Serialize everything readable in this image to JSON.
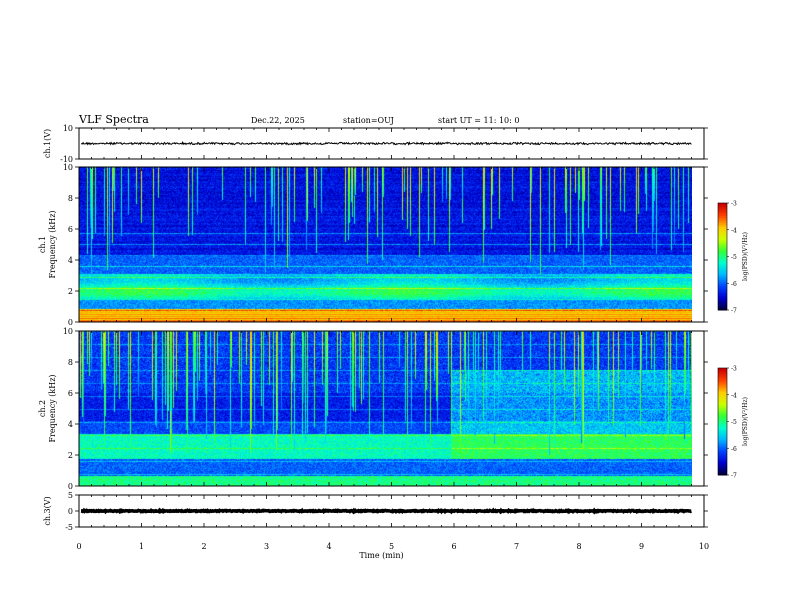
{
  "header": {
    "title": "VLF Spectra",
    "date": "Dec.22, 2025",
    "station": "station=OUJ",
    "start": "start  UT =   11: 10: 0"
  },
  "colors": {
    "background": "#ffffff",
    "axis": "#000000",
    "colormap": [
      "#00003c",
      "#0000d0",
      "#0044ff",
      "#00b8ff",
      "#00ffcc",
      "#33ff33",
      "#ccff00",
      "#ffcc00",
      "#ff4400",
      "#cc0000",
      "#ffffff"
    ]
  },
  "chart_data": [
    {
      "type": "line",
      "ylabel": "ch.1(V)",
      "yticks": [
        "10",
        "-10"
      ],
      "ylim": [
        -10,
        10
      ],
      "xlim": [
        0,
        10
      ],
      "level": 0,
      "amplitude": 0.6
    },
    {
      "type": "heatmap",
      "ylabel": "ch.1\nFrequency (kHz)",
      "ylim": [
        0,
        10
      ],
      "yticks": [
        "0",
        "2",
        "4",
        "6",
        "8",
        "10"
      ],
      "xlim": [
        0,
        10
      ],
      "data_end_min": 9.8,
      "description_bands": [
        {
          "freq_from": 1.5,
          "freq_to": 3.0,
          "intensity": "high"
        },
        {
          "freq_from": 0.0,
          "freq_to": 0.8,
          "intensity": "very high"
        }
      ],
      "colorbar": {
        "label": "log(PSD)(V²/Hz)",
        "ticks": [
          "-3",
          "-4",
          "-5",
          "-6",
          "-7"
        ],
        "range": [
          -7,
          -3
        ]
      }
    },
    {
      "type": "heatmap",
      "ylabel": "ch.2\nFrequency (kHz)",
      "ylim": [
        0,
        10
      ],
      "yticks": [
        "0",
        "2",
        "4",
        "6",
        "8",
        "10"
      ],
      "xlim": [
        0,
        10
      ],
      "data_end_min": 9.8,
      "description_bands": [
        {
          "freq_from": 1.8,
          "freq_to": 3.2,
          "intensity": "high"
        },
        {
          "freq_from": 4.0,
          "freq_to": 7.5,
          "intensity": "medium after 6 min"
        }
      ],
      "colorbar": {
        "label": "log(PSD)(V²/Hz)",
        "ticks": [
          "-3",
          "-4",
          "-5",
          "-6",
          "-7"
        ],
        "range": [
          -7,
          -3
        ]
      }
    },
    {
      "type": "line",
      "ylabel": "ch.3(V)",
      "yticks": [
        "5",
        "0",
        "-5"
      ],
      "ylim": [
        -5,
        5
      ],
      "xlim": [
        0,
        10
      ],
      "level": 0,
      "amplitude": 0.15,
      "xlabel": "Time (min)",
      "xticks": [
        "0",
        "1",
        "2",
        "3",
        "4",
        "5",
        "6",
        "7",
        "8",
        "9",
        "10"
      ]
    }
  ]
}
